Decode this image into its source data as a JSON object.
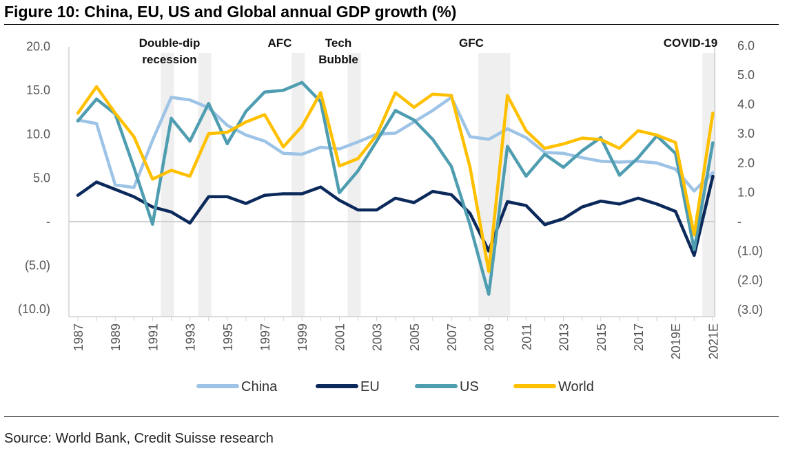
{
  "title": "Figure 10: China, EU, US and Global annual GDP growth (%)",
  "source": "Source: World Bank, Credit Suisse research",
  "chart_data": {
    "type": "line",
    "title": "Figure 10: China, EU, US and Global annual GDP growth (%)",
    "x": [
      "1987",
      "1988",
      "1989",
      "1990",
      "1991",
      "1992",
      "1993",
      "1994",
      "1995",
      "1996",
      "1997",
      "1998",
      "1999",
      "2000",
      "2001",
      "2002",
      "2003",
      "2004",
      "2005",
      "2006",
      "2007",
      "2008",
      "2009",
      "2010",
      "2011",
      "2012",
      "2013",
      "2014",
      "2015",
      "2016",
      "2017",
      "2018",
      "2019E",
      "2020",
      "2021E"
    ],
    "x_tick_labels": [
      "1987",
      "1989",
      "1991",
      "1993",
      "1995",
      "1997",
      "1999",
      "2001",
      "2003",
      "2005",
      "2007",
      "2009",
      "2011",
      "2013",
      "2015",
      "2017",
      "2019E",
      "2021E"
    ],
    "left_axis": {
      "ylim": [
        -10,
        20
      ],
      "ticks": [
        -10,
        -5,
        0,
        5,
        10,
        15,
        20
      ],
      "tick_labels": [
        "(10.0)",
        "(5.0)",
        "-",
        "5.0",
        "10.0",
        "15.0",
        "20.0"
      ]
    },
    "right_axis": {
      "ylim": [
        -3,
        6
      ],
      "ticks": [
        -3,
        -2,
        -1,
        0,
        1,
        2,
        3,
        4,
        5,
        6
      ],
      "tick_labels": [
        "(3.0)",
        "(2.0)",
        "(1.0)",
        "-",
        "1.0",
        "2.0",
        "3.0",
        "4.0",
        "5.0",
        "6.0"
      ]
    },
    "series": [
      {
        "name": "China",
        "axis": "left",
        "color": "#9dc3e6",
        "values": [
          11.6,
          11.2,
          4.2,
          3.9,
          9.3,
          14.2,
          13.9,
          13.0,
          11.0,
          9.9,
          9.2,
          7.8,
          7.7,
          8.5,
          8.3,
          9.1,
          10.0,
          10.1,
          11.4,
          12.7,
          14.2,
          9.7,
          9.4,
          10.6,
          9.6,
          7.9,
          7.8,
          7.3,
          6.9,
          6.8,
          6.9,
          6.7,
          6.0,
          3.5,
          5.6
        ]
      },
      {
        "name": "EU",
        "axis": "right",
        "color": "#0b2a5b",
        "values": [
          0.9,
          1.35,
          1.1,
          0.85,
          0.5,
          0.33,
          -0.05,
          0.85,
          0.85,
          0.62,
          0.9,
          0.95,
          0.95,
          1.18,
          0.73,
          0.4,
          0.4,
          0.8,
          0.65,
          1.03,
          0.92,
          0.28,
          -1.0,
          0.68,
          0.55,
          -0.1,
          0.1,
          0.5,
          0.7,
          0.6,
          0.8,
          0.6,
          0.35,
          -1.15,
          1.55
        ]
      },
      {
        "name": "US",
        "axis": "left",
        "color": "#4e9db0",
        "values": [
          11.5,
          14.0,
          12.3,
          6.2,
          -0.3,
          11.8,
          9.2,
          13.5,
          8.9,
          12.6,
          14.8,
          15.0,
          15.9,
          13.7,
          3.3,
          5.8,
          9.2,
          12.7,
          11.6,
          9.4,
          6.3,
          -0.4,
          -8.3,
          8.6,
          5.2,
          7.7,
          6.2,
          8.1,
          9.6,
          5.3,
          7.3,
          9.8,
          7.8,
          -3.2,
          9.0
        ]
      },
      {
        "name": "World",
        "axis": "right",
        "color": "#ffc000",
        "values": [
          3.7,
          4.6,
          3.7,
          2.9,
          1.45,
          1.75,
          1.55,
          3.0,
          3.05,
          3.4,
          3.65,
          2.55,
          3.25,
          4.4,
          1.9,
          2.15,
          2.95,
          4.4,
          3.9,
          4.35,
          4.3,
          1.85,
          -1.7,
          4.3,
          3.1,
          2.5,
          2.65,
          2.85,
          2.8,
          2.5,
          3.1,
          2.95,
          2.7,
          -0.45,
          3.7
        ]
      }
    ],
    "shaded_periods": [
      {
        "label": "Double-dip recession",
        "start": "1991",
        "end": "1992"
      },
      {
        "label": "Double-dip recession",
        "start": "1993",
        "end": "1994"
      },
      {
        "label": "AFC",
        "start": "1998",
        "end": "1999"
      },
      {
        "label": "Tech Bubble",
        "start": "2001",
        "end": "2002"
      },
      {
        "label": "GFC",
        "start": "2008",
        "end": "2010"
      },
      {
        "label": "COVID-19",
        "start": "2020",
        "end": "2021E"
      }
    ],
    "annotations": [
      {
        "lines": [
          "Double-dip",
          "recession"
        ],
        "near": "1993"
      },
      {
        "lines": [
          "AFC"
        ],
        "near": "1998"
      },
      {
        "lines": [
          "Tech",
          "Bubble"
        ],
        "near": "2001"
      },
      {
        "lines": [
          "GFC"
        ],
        "near": "2009"
      },
      {
        "lines": [
          "COVID-19"
        ],
        "near": "2020"
      }
    ],
    "grid": false,
    "legend_position": "bottom"
  }
}
